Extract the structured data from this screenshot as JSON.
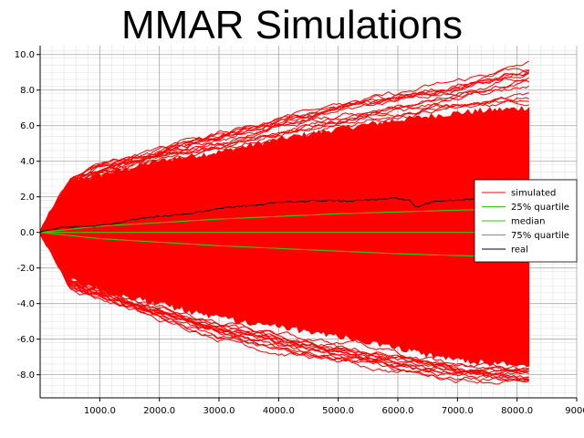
{
  "chart_data": {
    "type": "line",
    "title": "MMAR Simulations",
    "xlabel": "",
    "ylabel": "",
    "xlim": [
      0,
      9000
    ],
    "ylim": [
      -9.3,
      10.5
    ],
    "grid": true,
    "minor_grid": true,
    "legend_placement": "right",
    "x_ticks": [
      1000,
      2000,
      3000,
      4000,
      5000,
      6000,
      7000,
      8000,
      9000
    ],
    "x_tick_labels": [
      "1000.0",
      "2000.0",
      "3000.0",
      "4000.0",
      "5000.0",
      "6000.0",
      "7000.0",
      "8000.0",
      "9000"
    ],
    "y_ticks": [
      10,
      8,
      6,
      4,
      2,
      0,
      -2,
      -4,
      -6,
      -8
    ],
    "y_tick_labels": [
      "10.0",
      "8.0",
      "6.0",
      "4.0",
      "2.0",
      "0.0",
      "-2.0",
      "-4.0",
      "-6.0",
      "-8.0"
    ],
    "x_end": 8200,
    "series": [
      {
        "name": "simulated",
        "color": "#ff0000",
        "kind": "envelope",
        "x": [
          0,
          500,
          1000,
          2000,
          3000,
          4000,
          5000,
          6000,
          7000,
          8200
        ],
        "upper": [
          0,
          2.8,
          3.2,
          4.0,
          4.5,
          5.2,
          5.8,
          6.3,
          6.7,
          7.0
        ],
        "lower": [
          0,
          -2.6,
          -3.2,
          -4.0,
          -4.8,
          -5.3,
          -5.8,
          -6.5,
          -7.2,
          -7.5
        ],
        "extreme_upper": [
          0,
          3.0,
          3.8,
          4.6,
          5.6,
          6.5,
          7.2,
          7.8,
          8.5,
          9.6
        ],
        "extreme_lower": [
          0,
          -3.0,
          -3.6,
          -4.7,
          -5.9,
          -6.7,
          -7.3,
          -7.8,
          -8.2,
          -8.3
        ]
      },
      {
        "name": "25% quartile",
        "color": "#33cc00",
        "x": [
          0,
          1000,
          2000,
          3000,
          4000,
          5000,
          6000,
          7000,
          8200
        ],
        "values": [
          0,
          0.35,
          0.55,
          0.75,
          0.9,
          1.05,
          1.15,
          1.25,
          1.35
        ]
      },
      {
        "name": "median",
        "color": "#33cc00",
        "x": [
          0,
          2000,
          4000,
          6000,
          8200
        ],
        "values": [
          0,
          0.0,
          0.0,
          0.0,
          0.0
        ]
      },
      {
        "name": "75% quartile",
        "color": "#33cc00",
        "x": [
          0,
          1000,
          2000,
          3000,
          4000,
          5000,
          6000,
          7000,
          8200
        ],
        "values": [
          0,
          -0.35,
          -0.55,
          -0.75,
          -0.9,
          -1.05,
          -1.2,
          -1.3,
          -1.4
        ]
      },
      {
        "name": "real",
        "color": "#000000",
        "x": [
          0,
          300,
          700,
          1000,
          1300,
          1600,
          2000,
          2500,
          3000,
          3300,
          3700,
          4000,
          4400,
          4800,
          5200,
          5600,
          5900,
          6200,
          6300,
          6600,
          7000,
          7400,
          7800,
          8200
        ],
        "values": [
          0,
          0.25,
          0.35,
          0.38,
          0.55,
          0.75,
          0.9,
          1.05,
          1.35,
          1.45,
          1.55,
          1.7,
          1.75,
          1.8,
          1.75,
          1.85,
          1.95,
          1.8,
          1.4,
          1.75,
          1.8,
          1.95,
          1.85,
          1.9
        ]
      }
    ]
  },
  "legend": {
    "items": [
      "simulated",
      "25% quartile",
      "median",
      "75% quartile",
      "real"
    ]
  }
}
